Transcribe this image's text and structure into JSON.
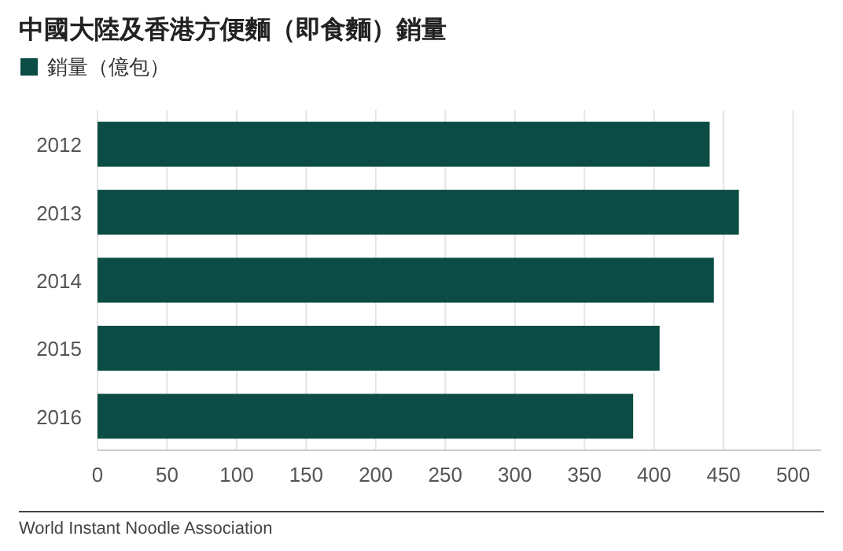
{
  "chart_data": {
    "type": "bar",
    "orientation": "horizontal",
    "title": "中國大陸及香港方便麵（即食麵）銷量",
    "categories": [
      "2012",
      "2013",
      "2014",
      "2015",
      "2016"
    ],
    "series": [
      {
        "name": "銷量（億包）",
        "color": "#0b4d44",
        "values": [
          440,
          461,
          443,
          404,
          385
        ]
      }
    ],
    "xlim": [
      0,
      520
    ],
    "xticks": [
      0,
      50,
      100,
      150,
      200,
      250,
      300,
      350,
      400,
      450,
      500
    ],
    "grid": "x",
    "legend": "top left",
    "annotations": [
      "World Instant Noodle Association"
    ]
  }
}
